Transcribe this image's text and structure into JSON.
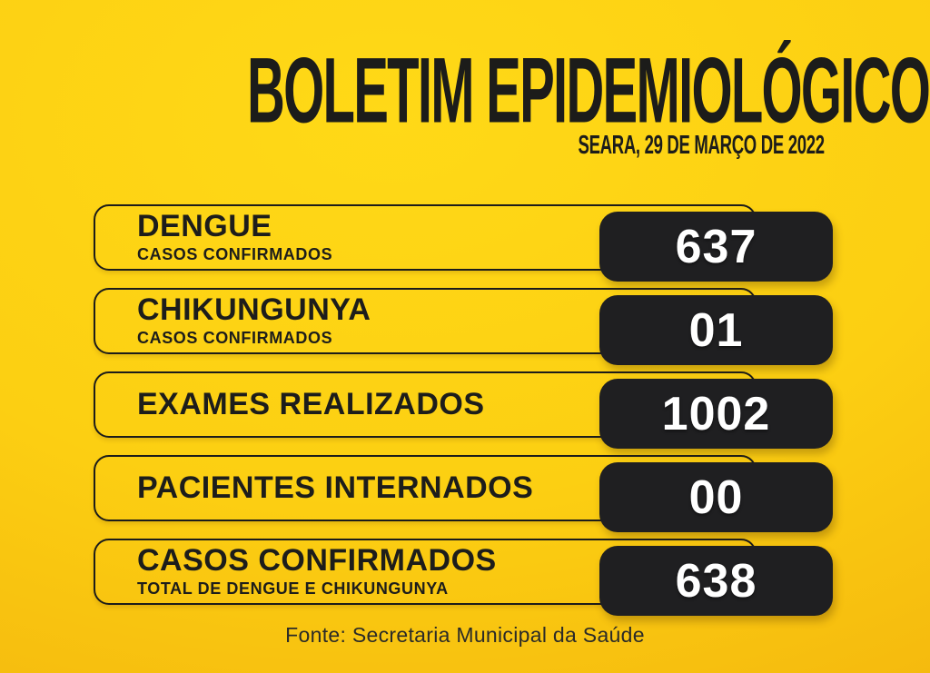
{
  "header": {
    "title": "BOLETIM EPIDEMIOLÓGICO",
    "subtitle": "SEARA, 29 DE MARÇO DE 2022"
  },
  "rows": [
    {
      "label": "DENGUE",
      "sublabel": "CASOS CONFIRMADOS",
      "value": "637"
    },
    {
      "label": "CHIKUNGUNYA",
      "sublabel": "CASOS CONFIRMADOS",
      "value": "01"
    },
    {
      "label": "EXAMES REALIZADOS",
      "sublabel": "",
      "value": "1002"
    },
    {
      "label": "PACIENTES INTERNADOS",
      "sublabel": "",
      "value": "00"
    },
    {
      "label": "CASOS CONFIRMADOS",
      "sublabel": "TOTAL DE DENGUE E CHIKUNGUNYA",
      "value": "638"
    }
  ],
  "footer": {
    "source": "Fonte: Secretaria Municipal da Saúde"
  },
  "colors": {
    "background_center": "#ffd917",
    "background_edge": "#f0ac0c",
    "panel_black": "#1f1f21",
    "text_dark": "#1d1d1b",
    "value_text": "#ffffff"
  }
}
